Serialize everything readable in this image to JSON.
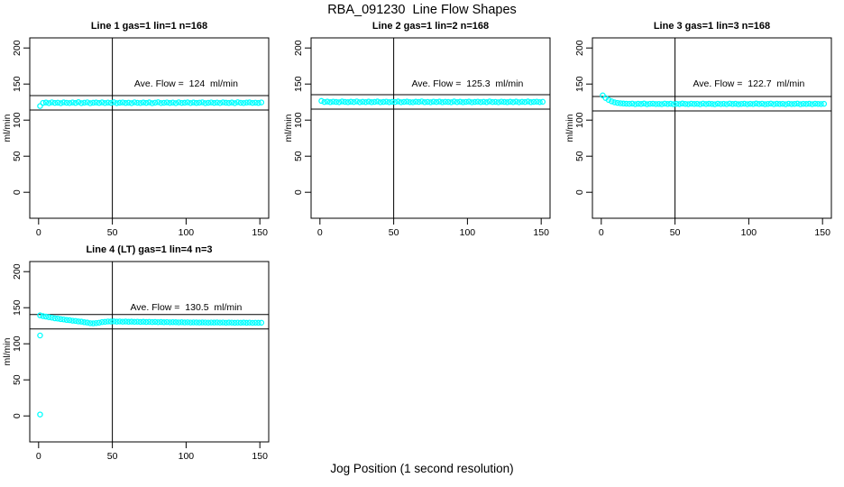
{
  "page": {
    "title": "RBA_091230  Line Flow Shapes",
    "xlabel": "Jog Position (1 second resolution)"
  },
  "chart_data": {
    "type": "scatter",
    "point_color": "#00FFFF",
    "axis_color": "#000000",
    "ylabel": "ml/min",
    "y_ticks": [
      0,
      50,
      100,
      150,
      200
    ],
    "x_ticks": [
      0,
      50,
      100,
      150
    ],
    "xlim": [
      -6,
      156
    ],
    "ylim": [
      -36,
      214
    ],
    "grid": false,
    "vline_x": 50,
    "band_halfwidth": 10,
    "ave_text_pos": {
      "x": 100,
      "y": 150
    },
    "panels": [
      {
        "title": "Line 1 gas=1 lin=1 n=168",
        "ave_flow": 124,
        "ave_label": "Ave. Flow =  124  ml/min",
        "x_start": 1,
        "x_step": 2,
        "y": [
          119.5,
          123.9,
          124.4,
          123.6,
          124.7,
          123.9,
          124.2,
          123.5,
          124.6,
          124.0,
          123.7,
          124.5,
          123.8,
          124.9,
          123.6,
          124.2,
          124.7,
          123.5,
          124.1,
          124.4,
          123.8,
          124.6,
          123.7,
          124.3,
          123.9,
          124.8,
          123.6,
          124.1,
          124.5,
          123.8,
          124.2,
          123.6,
          124.7,
          124.0,
          123.7,
          124.4,
          123.9,
          124.6,
          123.5,
          124.2,
          124.8,
          123.7,
          124.0,
          124.5,
          123.8,
          124.3,
          123.6,
          124.7,
          123.9,
          124.1,
          124.6,
          123.7,
          124.4,
          123.8,
          124.2,
          124.7,
          123.6,
          124.0,
          124.5,
          123.9,
          124.3,
          123.7,
          124.6,
          124.1,
          123.8,
          124.4,
          123.6,
          124.8,
          124.0,
          123.7,
          124.3,
          124.6,
          123.9,
          124.2,
          123.8,
          124.5
        ],
        "extra_points": []
      },
      {
        "title": "Line 2 gas=1 lin=2 n=168",
        "ave_flow": 125.3,
        "ave_label": "Ave. Flow =  125.3  ml/min",
        "x_start": 1,
        "x_step": 2,
        "y": [
          126.6,
          125.1,
          125.7,
          124.9,
          125.6,
          125.2,
          124.8,
          125.8,
          125.3,
          124.9,
          125.5,
          125.1,
          125.9,
          124.8,
          125.4,
          125.0,
          125.7,
          124.9,
          125.3,
          125.8,
          124.8,
          125.2,
          125.6,
          124.9,
          125.4,
          125.1,
          125.8,
          124.8,
          125.3,
          125.7,
          125.0,
          124.8,
          125.5,
          125.2,
          125.9,
          124.9,
          125.3,
          124.8,
          125.6,
          125.1,
          125.7,
          124.9,
          125.4,
          125.2,
          124.8,
          125.8,
          125.0,
          125.5,
          124.9,
          125.3,
          125.7,
          124.8,
          125.2,
          125.6,
          125.0,
          125.4,
          124.9,
          125.8,
          125.1,
          125.3,
          124.8,
          125.6,
          125.2,
          124.9,
          125.5,
          125.0,
          125.7,
          124.8,
          125.4,
          125.1,
          125.8,
          124.9,
          125.3,
          125.6,
          125.0,
          125.4
        ],
        "extra_points": []
      },
      {
        "title": "Line 3 gas=1 lin=3 n=168",
        "ave_flow": 122.7,
        "ave_label": "Ave. Flow =  122.7  ml/min",
        "x_start": 1,
        "x_step": 2,
        "y": [
          134.3,
          130.6,
          127.9,
          126.1,
          124.7,
          123.9,
          123.3,
          123.0,
          122.8,
          122.6,
          122.9,
          122.2,
          122.7,
          122.4,
          123.0,
          122.1,
          122.6,
          122.8,
          122.3,
          122.5,
          122.2,
          122.9,
          122.4,
          122.7,
          122.1,
          122.6,
          122.3,
          123.0,
          122.5,
          122.2,
          122.8,
          122.4,
          122.6,
          122.1,
          122.9,
          122.3,
          122.7,
          122.5,
          122.0,
          122.8,
          122.3,
          122.6,
          122.2,
          122.9,
          122.4,
          122.7,
          122.1,
          122.5,
          122.8,
          122.2,
          122.6,
          122.3,
          123.0,
          122.4,
          122.8,
          122.1,
          122.5,
          122.9,
          122.2,
          122.7,
          122.4,
          122.6,
          122.0,
          122.8,
          122.3,
          122.5,
          122.9,
          122.1,
          122.6,
          122.4,
          122.7,
          122.2,
          122.8,
          122.5,
          122.3,
          122.6
        ],
        "extra_points": []
      },
      {
        "title": "Line 4 (LT) gas=1 lin=4 n=3",
        "ave_flow": 130.5,
        "ave_label": "Ave. Flow =  130.5  ml/min",
        "x_start": 1,
        "x_step": 2,
        "y": [
          139.4,
          138.3,
          137.7,
          136.8,
          136.2,
          135.3,
          134.9,
          134.1,
          133.7,
          133.0,
          132.7,
          132.0,
          131.7,
          131.0,
          130.7,
          129.9,
          129.4,
          128.6,
          128.3,
          128.7,
          129.2,
          130.1,
          130.4,
          130.9,
          130.8,
          131.0,
          130.7,
          130.9,
          130.6,
          130.8,
          130.5,
          130.7,
          130.4,
          130.6,
          130.3,
          130.5,
          130.2,
          130.4,
          130.1,
          130.3,
          130.0,
          130.2,
          129.9,
          130.1,
          129.8,
          130.0,
          129.9,
          129.7,
          129.9,
          129.6,
          129.8,
          129.5,
          129.7,
          129.6,
          129.4,
          129.6,
          129.5,
          129.3,
          129.5,
          129.4,
          129.6,
          129.3,
          129.5,
          129.2,
          129.4,
          129.3,
          129.1,
          129.3,
          129.2,
          129.4,
          129.1,
          129.3,
          129.0,
          129.2,
          129.1,
          129.2
        ],
        "extra_points": [
          [
            1,
            111.5
          ],
          [
            1,
            2
          ]
        ]
      }
    ]
  }
}
